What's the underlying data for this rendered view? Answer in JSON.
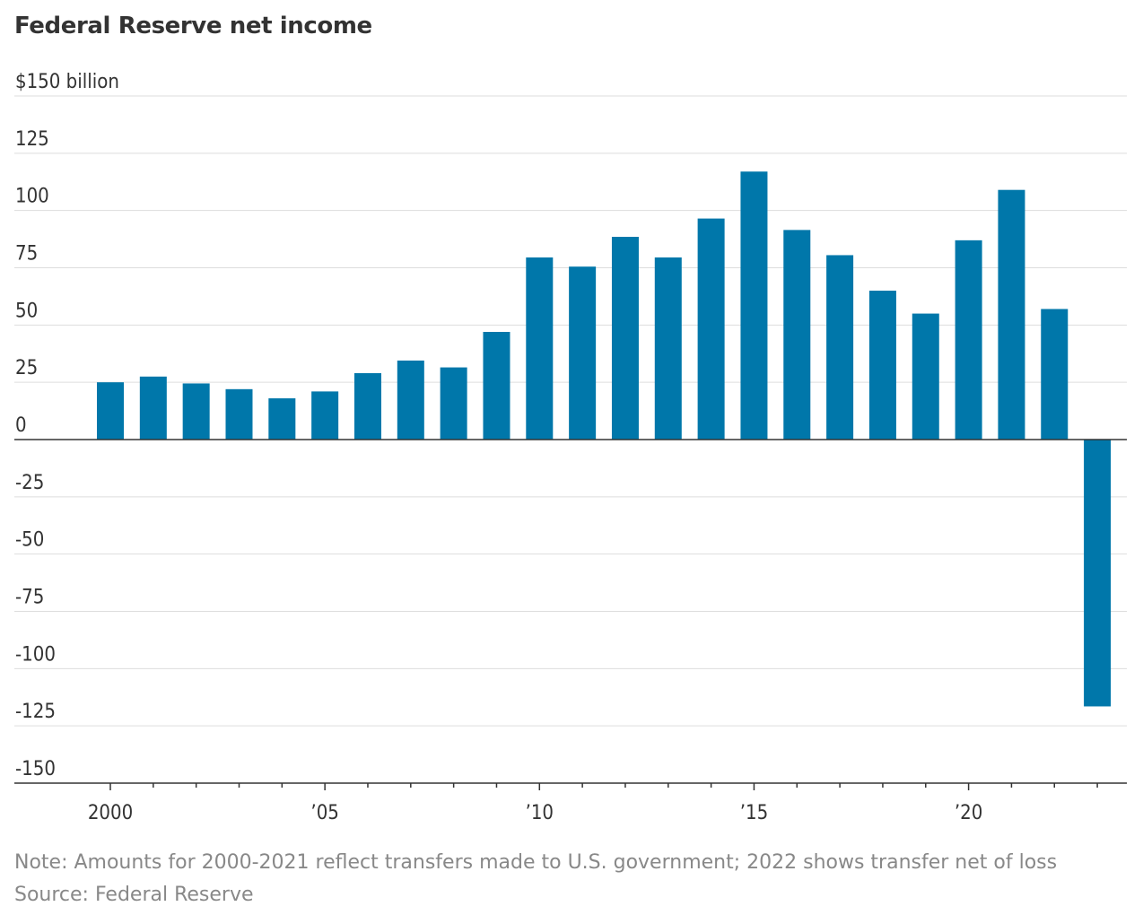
{
  "chart": {
    "title": "Federal Reserve net income",
    "note": "Note: Amounts for 2000-2021 reflect transfers made to U.S. government; 2022 shows transfer net of loss",
    "source": "Source: Federal Reserve"
  },
  "colors": {
    "bar": "#0077aa",
    "grid": "#dddddd",
    "zero_line": "#333333",
    "text": "#333333",
    "footnote": "#888888"
  },
  "chart_data": {
    "type": "bar",
    "title": "Federal Reserve net income",
    "xlabel": "",
    "ylabel": "",
    "unit_label": "$150 billion",
    "ylim": [
      -150,
      150
    ],
    "y_ticks": [
      150,
      125,
      100,
      75,
      50,
      25,
      0,
      -25,
      -50,
      -75,
      -100,
      -125,
      -150
    ],
    "y_tick_labels": [
      "$150 billion",
      "125",
      "100",
      "75",
      "50",
      "25",
      "0",
      "-25",
      "-50",
      "-75",
      "-100",
      "-125",
      "-150"
    ],
    "x_ticks": [
      2000,
      2005,
      2010,
      2015,
      2020
    ],
    "x_tick_labels": [
      "2000",
      "’05",
      "’10",
      "’15",
      "’20"
    ],
    "grid": true,
    "legend": "none",
    "categories": [
      2000,
      2001,
      2002,
      2003,
      2004,
      2005,
      2006,
      2007,
      2008,
      2009,
      2010,
      2011,
      2012,
      2013,
      2014,
      2015,
      2016,
      2017,
      2018,
      2019,
      2020,
      2021,
      2022,
      2023
    ],
    "values": [
      25,
      27.5,
      24.5,
      22,
      18,
      21,
      29,
      34.5,
      31.5,
      47,
      79.5,
      75.5,
      88.5,
      79.5,
      96.5,
      117,
      91.5,
      80.5,
      65,
      55,
      87,
      109,
      57,
      -116.5
    ]
  }
}
